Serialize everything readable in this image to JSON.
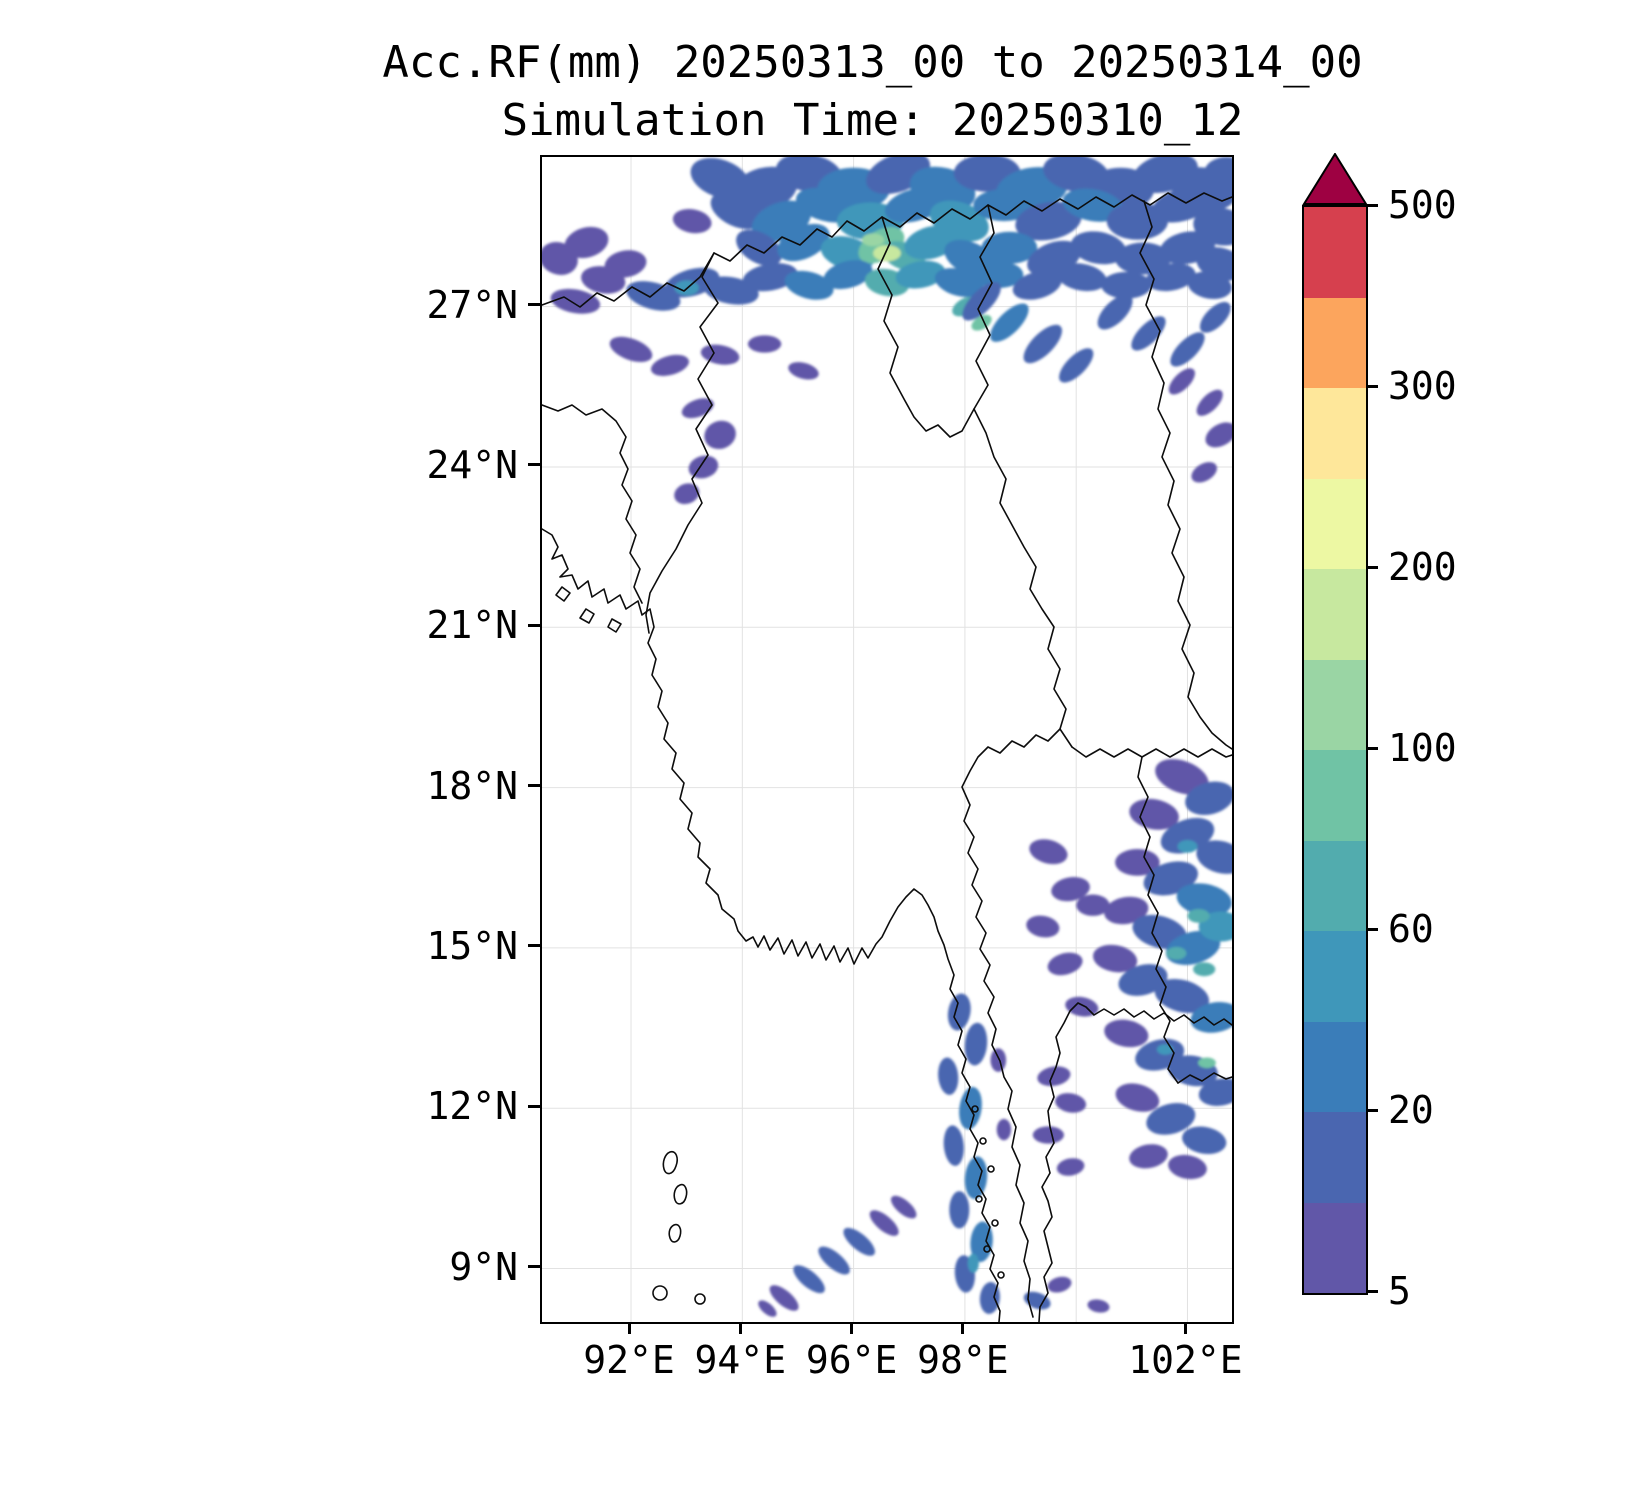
{
  "figure": {
    "title_line1": "Acc.RF(mm) 20250313_00 to 20250314_00",
    "title_line2": "Simulation Time: 20250310_12"
  },
  "chart_data": {
    "type": "heatmap",
    "subtype": "geographic-filled-contour-rainfall-map",
    "title": "Acc.RF(mm) 20250313_00 to 20250314_00",
    "subtitle": "Simulation Time: 20250310_12",
    "variable": "Accumulated rainfall (mm) over 24 h, valid 20250313_00 to 20250314_00",
    "simulation_time": "20250310_12",
    "units": "mm",
    "projection": "lat-lon",
    "lon_range": [
      90.4,
      102.8
    ],
    "lat_range": [
      8.0,
      29.8
    ],
    "grid_on": true,
    "x_tick_labels": [
      {
        "lon": 92,
        "label": "92°E"
      },
      {
        "lon": 94,
        "label": "94°E"
      },
      {
        "lon": 96,
        "label": "96°E"
      },
      {
        "lon": 98,
        "label": "98°E"
      },
      {
        "lon": 102,
        "label": "102°E"
      }
    ],
    "y_tick_labels": [
      {
        "lat": 9,
        "label": "9°N"
      },
      {
        "lat": 12,
        "label": "12°N"
      },
      {
        "lat": 15,
        "label": "15°N"
      },
      {
        "lat": 18,
        "label": "18°N"
      },
      {
        "lat": 21,
        "label": "21°N"
      },
      {
        "lat": 24,
        "label": "24°N"
      },
      {
        "lat": 27,
        "label": "27°N"
      }
    ],
    "gridline_lons": [
      92,
      94,
      96,
      98,
      100,
      102
    ],
    "gridline_lats": [
      9,
      12,
      15,
      18,
      21,
      24,
      27
    ],
    "colorbar": {
      "position": "right",
      "levels": [
        5,
        10,
        20,
        40,
        60,
        80,
        100,
        150,
        200,
        250,
        300,
        400,
        500
      ],
      "labeled_ticks": [
        5,
        20,
        60,
        100,
        200,
        300,
        500
      ],
      "labeled_tick_level_indices": [
        0,
        2,
        4,
        6,
        8,
        10,
        12
      ],
      "band_colors_bottom_to_top": [
        "#6157a8",
        "#4a66b0",
        "#3a7db9",
        "#3f97ba",
        "#52acae",
        "#70c3a5",
        "#9ad5a4",
        "#c7e89f",
        "#edf8a3",
        "#fee79a",
        "#fca55d",
        "#d6404e"
      ],
      "over_color": "#9e0142",
      "extend": "max"
    },
    "regions_summary": [
      "Heavy rain band along Himalayan foothills / northern Myanmar (27N-29.8N, 93E-102.8E): mostly 10-60 mm with embedded 60-250 mm cores near 96-97E",
      "Small scattered 5-20 mm patches over NE India / Assam hills (23.5N-26.5N, 92E-95E)",
      "Widespread 5-40 mm with embedded 40-150 mm cells over eastern Thailand / Laos sector (11N-18.5N, 99E-102.8E)",
      "North-south streaks of 10-60 mm along the Tanintharyi peninsula near 98E from 8N to 14N",
      "SW-NE oriented 5-20 mm streak over the Andaman Sea, 94.5E-97E, 8N-10.3N"
    ],
    "rain_cells_format": [
      "lon",
      "lat",
      "rx_deg",
      "ry_deg",
      "rotation_deg",
      "color_level_index"
    ],
    "rain_cells": [
      [
        93.6,
        29.4,
        0.55,
        0.35,
        20,
        1
      ],
      [
        94.4,
        29.2,
        0.6,
        0.4,
        -15,
        1
      ],
      [
        95.2,
        29.5,
        0.6,
        0.35,
        10,
        1
      ],
      [
        96.0,
        29.2,
        0.65,
        0.4,
        0,
        2
      ],
      [
        96.8,
        29.5,
        0.6,
        0.35,
        -20,
        1
      ],
      [
        97.6,
        29.2,
        0.6,
        0.4,
        15,
        2
      ],
      [
        98.4,
        29.5,
        0.6,
        0.35,
        0,
        1
      ],
      [
        99.2,
        29.2,
        0.65,
        0.4,
        -10,
        2
      ],
      [
        100.0,
        29.5,
        0.6,
        0.35,
        10,
        1
      ],
      [
        100.8,
        29.2,
        0.6,
        0.4,
        0,
        1
      ],
      [
        101.6,
        29.5,
        0.6,
        0.35,
        -15,
        1
      ],
      [
        102.3,
        29.2,
        0.6,
        0.4,
        10,
        1
      ],
      [
        102.7,
        29.5,
        0.4,
        0.3,
        0,
        1
      ],
      [
        93.9,
        28.8,
        0.5,
        0.3,
        25,
        1
      ],
      [
        94.7,
        28.6,
        0.55,
        0.35,
        -20,
        2
      ],
      [
        95.5,
        28.9,
        0.55,
        0.3,
        15,
        2
      ],
      [
        96.3,
        28.6,
        0.6,
        0.35,
        0,
        3
      ],
      [
        97.1,
        28.9,
        0.55,
        0.3,
        -15,
        2
      ],
      [
        97.9,
        28.6,
        0.55,
        0.35,
        20,
        3
      ],
      [
        98.7,
        28.9,
        0.55,
        0.3,
        0,
        2
      ],
      [
        99.5,
        28.6,
        0.6,
        0.35,
        -10,
        1
      ],
      [
        100.3,
        28.9,
        0.55,
        0.3,
        10,
        2
      ],
      [
        101.1,
        28.6,
        0.55,
        0.35,
        0,
        1
      ],
      [
        101.9,
        28.9,
        0.55,
        0.3,
        -15,
        1
      ],
      [
        102.6,
        28.5,
        0.5,
        0.35,
        10,
        1
      ],
      [
        93.1,
        28.6,
        0.35,
        0.22,
        10,
        0
      ],
      [
        94.3,
        28.1,
        0.45,
        0.28,
        30,
        1
      ],
      [
        95.1,
        28.2,
        0.5,
        0.3,
        -25,
        2
      ],
      [
        95.9,
        28.0,
        0.5,
        0.3,
        15,
        3
      ],
      [
        96.5,
        28.15,
        0.45,
        0.28,
        -30,
        5
      ],
      [
        96.9,
        27.95,
        0.4,
        0.25,
        20,
        4
      ],
      [
        96.6,
        28.0,
        0.25,
        0.15,
        0,
        7
      ],
      [
        96.35,
        28.25,
        0.2,
        0.12,
        0,
        6
      ],
      [
        97.4,
        28.2,
        0.5,
        0.3,
        -15,
        3
      ],
      [
        98.1,
        27.9,
        0.5,
        0.3,
        25,
        2
      ],
      [
        98.8,
        28.1,
        0.5,
        0.3,
        0,
        2
      ],
      [
        99.6,
        27.9,
        0.5,
        0.3,
        -20,
        1
      ],
      [
        100.4,
        28.1,
        0.5,
        0.3,
        10,
        1
      ],
      [
        101.2,
        27.9,
        0.5,
        0.3,
        0,
        1
      ],
      [
        102.0,
        28.1,
        0.5,
        0.3,
        -10,
        1
      ],
      [
        102.6,
        27.8,
        0.45,
        0.3,
        15,
        1
      ],
      [
        91.0,
        27.1,
        0.45,
        0.22,
        10,
        0
      ],
      [
        90.7,
        27.9,
        0.35,
        0.3,
        20,
        0
      ],
      [
        91.2,
        28.2,
        0.4,
        0.28,
        -15,
        0
      ],
      [
        91.5,
        27.5,
        0.4,
        0.25,
        10,
        0
      ],
      [
        91.9,
        27.8,
        0.38,
        0.25,
        -10,
        0
      ],
      [
        92.4,
        27.2,
        0.5,
        0.25,
        15,
        1
      ],
      [
        93.1,
        27.45,
        0.5,
        0.25,
        -15,
        1
      ],
      [
        93.0,
        27.35,
        0.22,
        0.14,
        0,
        3
      ],
      [
        93.8,
        27.3,
        0.5,
        0.25,
        10,
        1
      ],
      [
        94.5,
        27.55,
        0.5,
        0.25,
        -10,
        1
      ],
      [
        95.2,
        27.4,
        0.45,
        0.25,
        15,
        2
      ],
      [
        95.9,
        27.6,
        0.45,
        0.25,
        -15,
        2
      ],
      [
        96.6,
        27.45,
        0.4,
        0.25,
        10,
        4
      ],
      [
        97.2,
        27.6,
        0.45,
        0.25,
        -10,
        3
      ],
      [
        97.9,
        27.45,
        0.45,
        0.25,
        15,
        2
      ],
      [
        98.6,
        27.6,
        0.45,
        0.25,
        0,
        2
      ],
      [
        99.3,
        27.4,
        0.45,
        0.25,
        -15,
        1
      ],
      [
        100.1,
        27.55,
        0.45,
        0.25,
        10,
        1
      ],
      [
        100.9,
        27.4,
        0.45,
        0.25,
        0,
        1
      ],
      [
        101.7,
        27.55,
        0.45,
        0.25,
        -10,
        1
      ],
      [
        102.4,
        27.4,
        0.4,
        0.25,
        10,
        1
      ],
      [
        98.0,
        27.0,
        0.25,
        0.15,
        -30,
        4
      ],
      [
        98.3,
        26.7,
        0.2,
        0.12,
        -30,
        5
      ],
      [
        98.3,
        27.1,
        0.45,
        0.2,
        -45,
        1
      ],
      [
        98.8,
        26.7,
        0.45,
        0.2,
        -45,
        2
      ],
      [
        99.4,
        26.3,
        0.45,
        0.2,
        -45,
        1
      ],
      [
        100.0,
        25.9,
        0.4,
        0.18,
        -45,
        1
      ],
      [
        100.7,
        26.9,
        0.4,
        0.2,
        -45,
        1
      ],
      [
        101.3,
        26.5,
        0.4,
        0.18,
        -45,
        1
      ],
      [
        102.0,
        26.2,
        0.4,
        0.18,
        -45,
        1
      ],
      [
        102.5,
        26.8,
        0.35,
        0.18,
        -45,
        1
      ],
      [
        101.9,
        25.6,
        0.3,
        0.15,
        -45,
        0
      ],
      [
        102.4,
        25.2,
        0.3,
        0.15,
        -45,
        0
      ],
      [
        102.6,
        24.6,
        0.3,
        0.2,
        -30,
        0
      ],
      [
        102.3,
        23.9,
        0.25,
        0.16,
        -30,
        0
      ],
      [
        92.0,
        26.2,
        0.4,
        0.2,
        20,
        0
      ],
      [
        92.7,
        25.9,
        0.35,
        0.18,
        -15,
        0
      ],
      [
        93.6,
        26.1,
        0.35,
        0.18,
        10,
        0
      ],
      [
        94.4,
        26.3,
        0.3,
        0.16,
        0,
        0
      ],
      [
        95.1,
        25.8,
        0.28,
        0.15,
        15,
        0
      ],
      [
        93.2,
        25.1,
        0.3,
        0.16,
        -20,
        0
      ],
      [
        93.6,
        24.6,
        0.25,
        0.3,
        70,
        0
      ],
      [
        93.3,
        24.0,
        0.2,
        0.28,
        75,
        0
      ],
      [
        93.0,
        23.5,
        0.18,
        0.24,
        70,
        0
      ],
      [
        101.9,
        18.2,
        0.5,
        0.3,
        20,
        0
      ],
      [
        102.4,
        17.8,
        0.45,
        0.3,
        -15,
        1
      ],
      [
        101.4,
        17.5,
        0.45,
        0.28,
        10,
        0
      ],
      [
        102.0,
        17.1,
        0.5,
        0.3,
        -20,
        1
      ],
      [
        102.6,
        16.7,
        0.45,
        0.3,
        15,
        1
      ],
      [
        101.1,
        16.6,
        0.4,
        0.25,
        0,
        0
      ],
      [
        101.7,
        16.3,
        0.5,
        0.3,
        -15,
        1
      ],
      [
        102.3,
        15.9,
        0.5,
        0.3,
        10,
        2
      ],
      [
        100.9,
        15.7,
        0.4,
        0.25,
        -10,
        0
      ],
      [
        101.5,
        15.3,
        0.5,
        0.3,
        15,
        1
      ],
      [
        102.1,
        15.0,
        0.5,
        0.3,
        -15,
        2
      ],
      [
        102.6,
        15.4,
        0.4,
        0.28,
        0,
        3
      ],
      [
        100.7,
        14.8,
        0.4,
        0.25,
        10,
        0
      ],
      [
        101.2,
        14.4,
        0.45,
        0.28,
        -15,
        1
      ],
      [
        101.9,
        14.1,
        0.5,
        0.3,
        15,
        1
      ],
      [
        102.5,
        13.7,
        0.45,
        0.28,
        -10,
        2
      ],
      [
        100.9,
        13.4,
        0.4,
        0.25,
        10,
        0
      ],
      [
        101.5,
        13.0,
        0.45,
        0.28,
        -15,
        1
      ],
      [
        102.1,
        12.7,
        0.45,
        0.28,
        10,
        1
      ],
      [
        102.6,
        12.3,
        0.4,
        0.25,
        -10,
        1
      ],
      [
        101.1,
        12.2,
        0.4,
        0.25,
        15,
        0
      ],
      [
        101.7,
        11.8,
        0.45,
        0.28,
        -15,
        1
      ],
      [
        102.3,
        11.4,
        0.4,
        0.25,
        10,
        1
      ],
      [
        101.3,
        11.1,
        0.35,
        0.22,
        -10,
        0
      ],
      [
        102.0,
        10.9,
        0.35,
        0.22,
        10,
        0
      ],
      [
        102.2,
        15.6,
        0.2,
        0.13,
        0,
        4
      ],
      [
        101.8,
        14.9,
        0.18,
        0.12,
        0,
        4
      ],
      [
        102.35,
        12.85,
        0.16,
        0.1,
        0,
        5
      ],
      [
        102.0,
        16.9,
        0.18,
        0.12,
        0,
        3
      ],
      [
        101.6,
        13.1,
        0.15,
        0.1,
        0,
        3
      ],
      [
        102.3,
        14.6,
        0.2,
        0.13,
        0,
        4
      ],
      [
        99.5,
        16.8,
        0.35,
        0.22,
        15,
        0
      ],
      [
        99.9,
        16.1,
        0.35,
        0.22,
        -10,
        0
      ],
      [
        99.4,
        15.4,
        0.3,
        0.2,
        10,
        0
      ],
      [
        99.8,
        14.7,
        0.32,
        0.2,
        -15,
        0
      ],
      [
        100.3,
        15.8,
        0.3,
        0.2,
        0,
        0
      ],
      [
        100.1,
        13.9,
        0.3,
        0.18,
        10,
        0
      ],
      [
        99.6,
        12.6,
        0.3,
        0.18,
        -10,
        0
      ],
      [
        99.9,
        12.1,
        0.28,
        0.18,
        10,
        0
      ],
      [
        99.5,
        11.5,
        0.28,
        0.16,
        0,
        0
      ],
      [
        99.9,
        10.9,
        0.25,
        0.16,
        -10,
        0
      ],
      [
        97.9,
        13.8,
        0.2,
        0.35,
        10,
        1
      ],
      [
        98.2,
        13.2,
        0.2,
        0.4,
        5,
        1
      ],
      [
        97.7,
        12.6,
        0.18,
        0.35,
        -5,
        1
      ],
      [
        98.1,
        12.0,
        0.2,
        0.4,
        8,
        2
      ],
      [
        97.8,
        11.3,
        0.18,
        0.38,
        -5,
        1
      ],
      [
        98.2,
        10.7,
        0.2,
        0.4,
        5,
        2
      ],
      [
        97.9,
        10.1,
        0.18,
        0.35,
        0,
        1
      ],
      [
        98.3,
        9.5,
        0.2,
        0.38,
        5,
        2
      ],
      [
        98.0,
        8.9,
        0.18,
        0.35,
        -5,
        1
      ],
      [
        98.45,
        8.45,
        0.18,
        0.3,
        5,
        1
      ],
      [
        98.15,
        9.1,
        0.1,
        0.18,
        0,
        3
      ],
      [
        98.6,
        12.9,
        0.14,
        0.22,
        0,
        0
      ],
      [
        98.7,
        11.6,
        0.13,
        0.2,
        0,
        0
      ],
      [
        94.75,
        8.45,
        0.32,
        0.14,
        40,
        0
      ],
      [
        95.2,
        8.8,
        0.35,
        0.15,
        40,
        1
      ],
      [
        95.65,
        9.15,
        0.35,
        0.15,
        40,
        1
      ],
      [
        96.1,
        9.5,
        0.35,
        0.15,
        40,
        1
      ],
      [
        96.55,
        9.85,
        0.32,
        0.14,
        40,
        0
      ],
      [
        96.9,
        10.15,
        0.28,
        0.13,
        40,
        0
      ],
      [
        94.45,
        8.25,
        0.2,
        0.1,
        40,
        0
      ],
      [
        99.3,
        8.4,
        0.25,
        0.15,
        20,
        1
      ],
      [
        99.7,
        8.7,
        0.22,
        0.14,
        -15,
        0
      ],
      [
        100.4,
        8.3,
        0.2,
        0.12,
        10,
        0
      ]
    ]
  }
}
